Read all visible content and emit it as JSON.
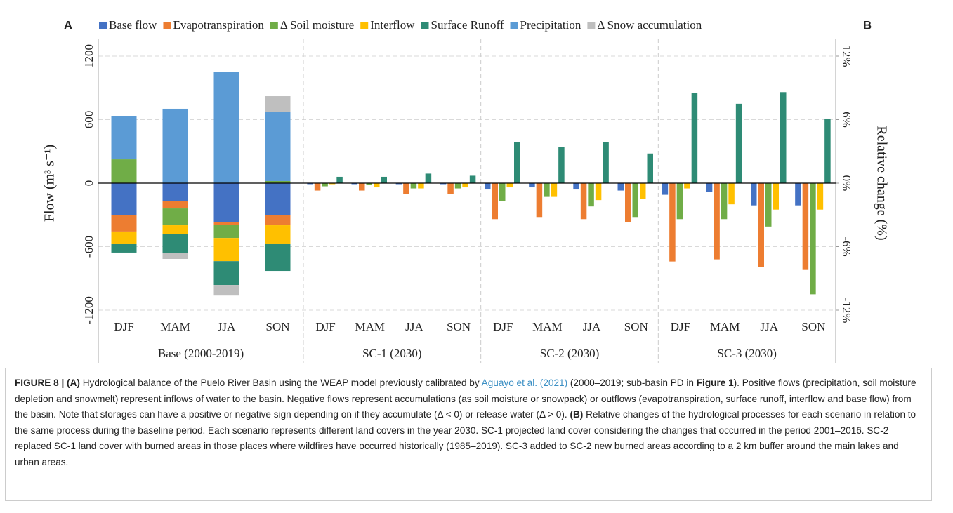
{
  "chart_data": [
    {
      "type": "stacked_bar",
      "panel": "A",
      "group": "Base (2000-2019)",
      "categories": [
        "DJF",
        "MAM",
        "JJA",
        "SON"
      ],
      "ylabel": "Flow (m³ s⁻¹)",
      "ylim": [
        -1200,
        1200
      ],
      "yticks": [
        -1200,
        -600,
        0,
        600,
        1200
      ],
      "grid": true,
      "series": [
        {
          "name": "Base flow",
          "color": "#4472c4",
          "values": [
            -305,
            -166,
            -365,
            -305
          ]
        },
        {
          "name": "Evapotranspiration",
          "color": "#ed7d31",
          "values": [
            -152,
            -73,
            -27,
            -93
          ]
        },
        {
          "name": "Δ Soil moisture",
          "color": "#70ad47",
          "values": [
            225,
            -159,
            -126,
            20
          ]
        },
        {
          "name": "Interflow",
          "color": "#ffc000",
          "values": [
            -113,
            -86,
            -219,
            -172
          ]
        },
        {
          "name": "Surface Runoff",
          "color": "#2e8b75",
          "values": [
            -86,
            -179,
            -225,
            -259
          ]
        },
        {
          "name": "Precipitation",
          "color": "#5b9bd5",
          "values": [
            405,
            703,
            1048,
            650
          ]
        },
        {
          "name": "Δ Snow accumulation",
          "color": "#bfbfbf",
          "values": [
            0,
            -53,
            -100,
            152
          ]
        }
      ]
    },
    {
      "type": "bar",
      "panel": "B",
      "groups": [
        "SC-1 (2030)",
        "SC-2 (2030)",
        "SC-3 (2030)"
      ],
      "categories": [
        "DJF",
        "MAM",
        "JJA",
        "SON",
        "DJF",
        "MAM",
        "JJA",
        "SON",
        "DJF",
        "MAM",
        "JJA",
        "SON"
      ],
      "ylabel": "Relative change (%)",
      "ylim": [
        -12,
        12
      ],
      "yticks": [
        {
          "value": -12,
          "label": "-12%"
        },
        {
          "value": -6,
          "label": "-6%"
        },
        {
          "value": 0,
          "label": "0%"
        },
        {
          "value": 6,
          "label": "6%"
        },
        {
          "value": 12,
          "label": "12%"
        }
      ],
      "series": [
        {
          "color": "#4472c4",
          "values": [
            -0.1,
            -0.1,
            -0.1,
            -0.1,
            -0.6,
            -0.4,
            -0.6,
            -0.7,
            -1.1,
            -0.8,
            -2.1,
            -2.1
          ]
        },
        {
          "color": "#ed7d31",
          "values": [
            -0.7,
            -0.7,
            -1.0,
            -1.0,
            -3.4,
            -3.2,
            -3.4,
            -3.7,
            -7.4,
            -7.2,
            -7.9,
            -8.2
          ]
        },
        {
          "color": "#70ad47",
          "values": [
            -0.3,
            -0.2,
            -0.5,
            -0.5,
            -1.7,
            -1.3,
            -2.2,
            -3.2,
            -3.4,
            -3.4,
            -4.1,
            -10.5
          ]
        },
        {
          "color": "#ffc000",
          "values": [
            -0.1,
            -0.4,
            -0.5,
            -0.4,
            -0.4,
            -1.3,
            -1.6,
            -1.5,
            -0.5,
            -2.0,
            -2.5,
            -2.5
          ]
        },
        {
          "color": "#2e8b75",
          "values": [
            0.6,
            0.6,
            0.9,
            0.7,
            3.9,
            3.4,
            3.9,
            2.8,
            8.5,
            7.5,
            8.6,
            6.1
          ]
        }
      ]
    }
  ],
  "caption": {
    "runs": [
      {
        "text": "FIGURE 8 | (A)",
        "style": "bold"
      },
      {
        "text": " Hydrological balance of the Puelo River Basin using the WEAP model previously calibrated by ",
        "style": "normal"
      },
      {
        "text": "Aguayo et al. (2021)",
        "style": "link"
      },
      {
        "text": " (2000–2019; sub-basin PD in ",
        "style": "normal"
      },
      {
        "text": "Figure 1",
        "style": "bold"
      },
      {
        "text": "). Positive flows (precipitation, soil moisture depletion and snowmelt) represent inflows of water to the basin. Negative flows represent accumulations (as soil moisture or snowpack) or outflows (evapotranspiration, surface runoff, interflow and base flow) from the basin. Note that storages can have a positive or negative sign depending on if they accumulate (Δ < 0) or release water (Δ > 0). ",
        "style": "normal"
      },
      {
        "text": "(B)",
        "style": "bold"
      },
      {
        "text": " Relative changes of the hydrological processes for each scenario in relation to the same process during the baseline period. Each scenario represents different land covers in the year 2030. SC-1 projected land cover considering the changes that occurred in the period 2001–2016. SC-2 replaced SC-1 land cover with burned areas in those places where wildfires have occurred historically (1985–2019). SC-3 added to SC-2 new burned areas according to a 2 km buffer around the main lakes and urban areas.",
        "style": "normal"
      }
    ]
  }
}
